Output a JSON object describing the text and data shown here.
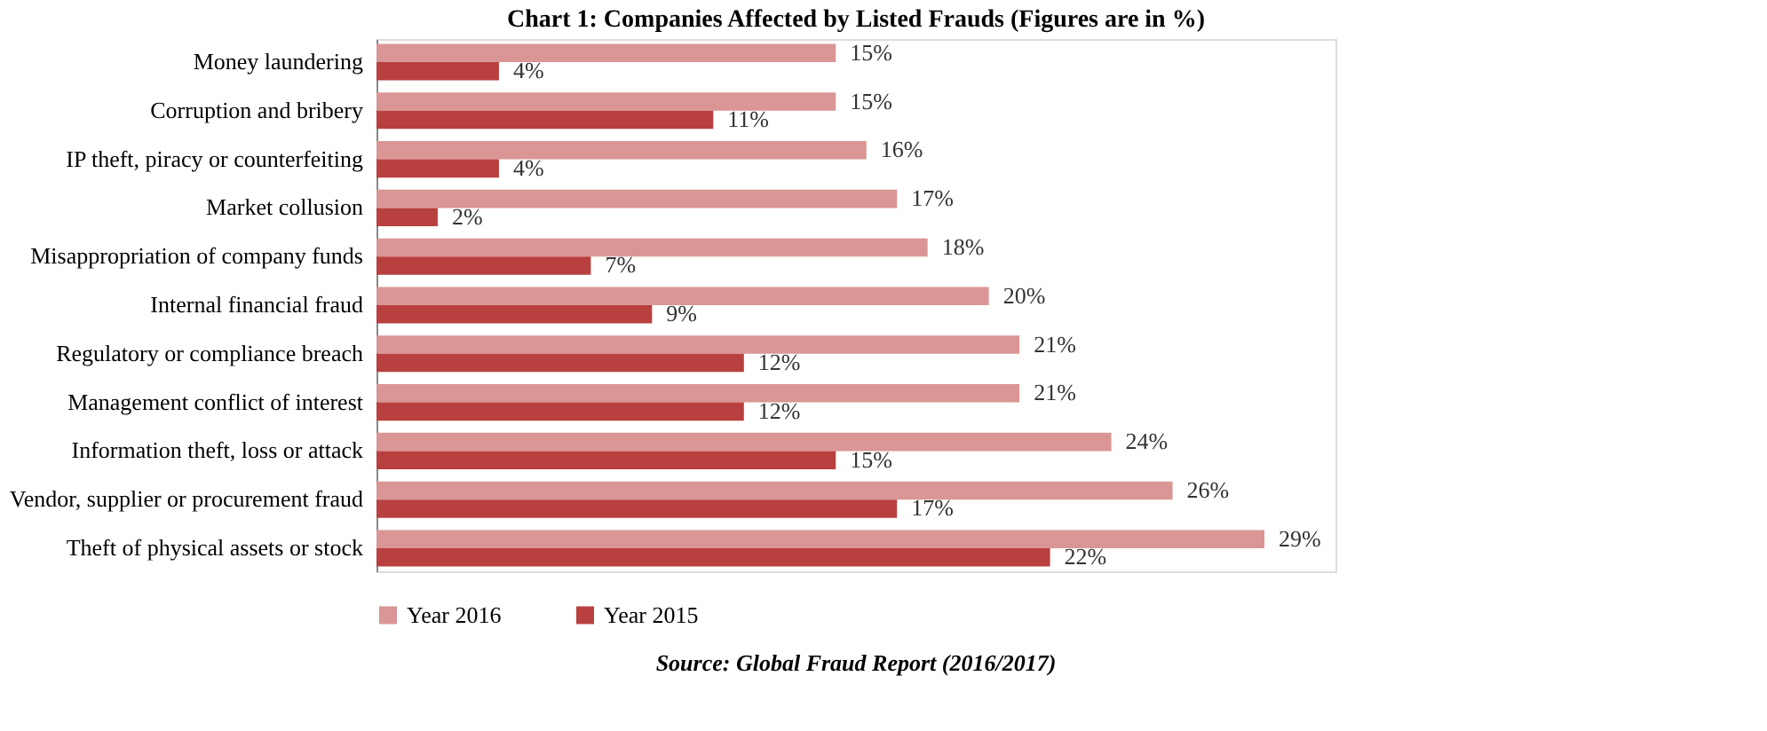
{
  "chart_data": {
    "type": "bar",
    "orientation": "horizontal",
    "title": "Chart 1: Companies Affected by Listed Frauds (Figures are in %)",
    "categories": [
      "Money laundering",
      "Corruption and bribery",
      "IP theft, piracy or counterfeiting",
      "Market collusion",
      "Misappropriation of company funds",
      "Internal financial fraud",
      "Regulatory or compliance breach",
      "Management conflict of interest",
      "Information theft, loss or attack",
      "Vendor, supplier or procurement fraud",
      "Theft of physical assets or stock"
    ],
    "series": [
      {
        "name": "Year 2016",
        "color": "#d99694",
        "values": [
          15,
          15,
          16,
          17,
          18,
          20,
          21,
          21,
          24,
          26,
          29
        ],
        "value_labels": [
          "15%",
          "15%",
          "16%",
          "17%",
          "18%",
          "20%",
          "21%",
          "21%",
          "24%",
          "26%",
          "29%"
        ]
      },
      {
        "name": "Year 2015",
        "color": "#b8403f",
        "values": [
          4,
          11,
          4,
          2,
          7,
          9,
          12,
          12,
          15,
          17,
          22
        ],
        "value_labels": [
          "4%",
          "11%",
          "4%",
          "2%",
          "7%",
          "9%",
          "12%",
          "12%",
          "15%",
          "17%",
          "22%"
        ]
      }
    ],
    "legend": "bottom",
    "annotations": [
      "Source: Global Fraud Report (2016/2017)"
    ]
  }
}
